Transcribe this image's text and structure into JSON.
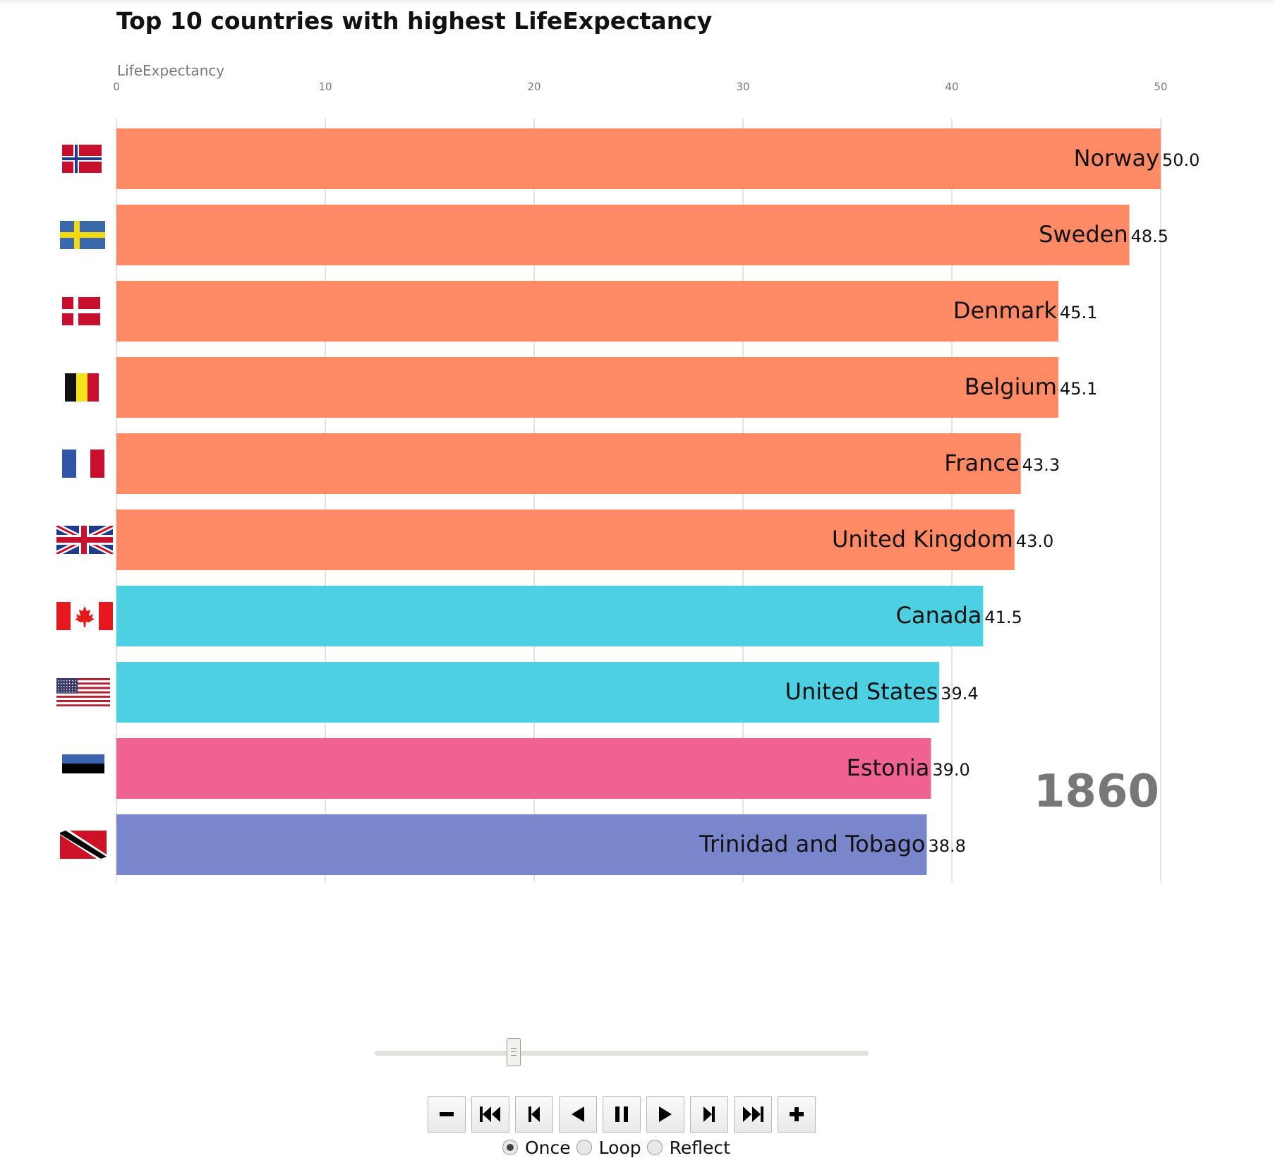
{
  "chart_data": {
    "type": "bar",
    "orientation": "horizontal",
    "title": "Top 10 countries with highest LifeExpectancy",
    "xlabel": "LifeExpectancy",
    "xlim": [
      0,
      50
    ],
    "xticks": [
      "0",
      "10",
      "20",
      "30",
      "40",
      "50"
    ],
    "year": "1860",
    "grid": true,
    "categories": [
      "Norway",
      "Sweden",
      "Denmark",
      "Belgium",
      "France",
      "United Kingdom",
      "Canada",
      "United States",
      "Estonia",
      "Trinidad and Tobago"
    ],
    "values": [
      50.0,
      48.5,
      45.1,
      45.1,
      43.3,
      43.0,
      41.5,
      39.4,
      39.0,
      38.8
    ],
    "value_labels": [
      "50.0",
      "48.5",
      "45.1",
      "45.1",
      "43.3",
      "43.0",
      "41.5",
      "39.4",
      "39.0",
      "38.8"
    ],
    "bar_colors": [
      "#ff8a65",
      "#ff8a65",
      "#ff8a65",
      "#ff8a65",
      "#ff8a65",
      "#ff8a65",
      "#4dd0e1",
      "#4dd0e1",
      "#f06292",
      "#7986cb"
    ],
    "flags": [
      "norway-flag",
      "sweden-flag",
      "denmark-flag",
      "belgium-flag",
      "france-flag",
      "united-kingdom-flag",
      "canada-flag",
      "united-states-flag",
      "estonia-flag",
      "trinidad-and-tobago-flag"
    ]
  },
  "player": {
    "slider_value": 0.28,
    "buttons": [
      "minus-icon",
      "first-frame-icon",
      "step-back-icon",
      "play-reverse-icon",
      "pause-icon",
      "play-icon",
      "step-forward-icon",
      "last-frame-icon",
      "plus-icon"
    ],
    "modes": [
      {
        "label": "Once",
        "checked": true
      },
      {
        "label": "Loop",
        "checked": false
      },
      {
        "label": "Reflect",
        "checked": false
      }
    ]
  },
  "colors": {
    "title": "#111111",
    "axis_text": "#777777",
    "grid": "#d9d9d9",
    "year": "#777777"
  }
}
